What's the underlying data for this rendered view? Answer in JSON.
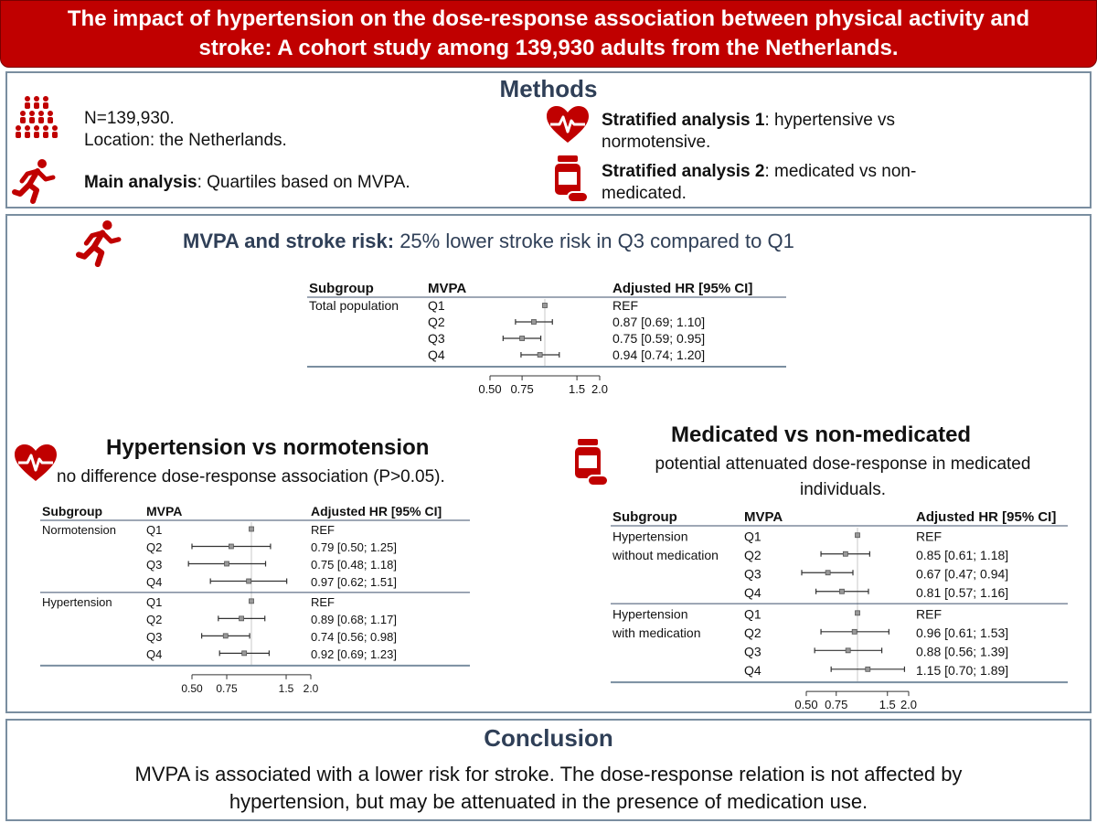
{
  "header": {
    "line1": "The impact of hypertension on the dose-response association between physical activity and",
    "line2": "stroke: A cohort study among 139,930 adults from the Netherlands."
  },
  "methods": {
    "heading": "Methods",
    "n": "N=139,930.",
    "location": "Location: the Netherlands.",
    "main_bold": "Main analysis",
    "main_rest": ": Quartiles based on MVPA.",
    "strat1_bold": "Stratified analysis 1",
    "strat1_rest_1": ": hypertensive vs",
    "strat1_rest_2": "normotensive.",
    "strat2_bold": "Stratified analysis 2",
    "strat2_rest_1": ": medicated vs non-",
    "strat2_rest_2": "medicated."
  },
  "main_result": {
    "bold": "MVPA and stroke risk:",
    "rest": " 25% lower stroke risk in Q3 compared to Q1"
  },
  "hypertension_section": {
    "heading": "Hypertension vs normotension",
    "sub": "no difference dose-response association (P>0.05)."
  },
  "medication_section": {
    "heading": "Medicated vs non-medicated",
    "sub1": "potential attenuated dose-response in medicated",
    "sub2": "individuals."
  },
  "conclusion": {
    "heading": "Conclusion",
    "line1": "MVPA is associated with a lower risk for stroke. The dose-response relation is not affected by",
    "line2": "hypertension, but may be attenuated in the presence of medication use."
  },
  "colors": {
    "accent": "#c00000",
    "heading": "#2f3f57",
    "rule": "#7a8ea0"
  },
  "chart_data": [
    {
      "type": "forest",
      "id": "main",
      "columns": [
        "Subgroup",
        "MVPA",
        "Adjusted HR [95% CI]"
      ],
      "scale": "log",
      "xlim": [
        0.5,
        2.0
      ],
      "ticks": [
        {
          "v": 0.5,
          "label": "0.50"
        },
        {
          "v": 0.75,
          "label": "0.75"
        },
        {
          "v": 1.5,
          "label": "1.5"
        },
        {
          "v": 2.0,
          "label": "2.0"
        }
      ],
      "groups": [
        {
          "label": [
            "Total population"
          ],
          "rows": [
            {
              "q": "Q1",
              "hr": 1.0,
              "lo": null,
              "hi": null,
              "text": "REF"
            },
            {
              "q": "Q2",
              "hr": 0.87,
              "lo": 0.69,
              "hi": 1.1,
              "text": "0.87 [0.69; 1.10]"
            },
            {
              "q": "Q3",
              "hr": 0.75,
              "lo": 0.59,
              "hi": 0.95,
              "text": "0.75 [0.59; 0.95]"
            },
            {
              "q": "Q4",
              "hr": 0.94,
              "lo": 0.74,
              "hi": 1.2,
              "text": "0.94 [0.74; 1.20]"
            }
          ]
        }
      ]
    },
    {
      "type": "forest",
      "id": "hyp",
      "columns": [
        "Subgroup",
        "MVPA",
        "Adjusted HR [95% CI]"
      ],
      "scale": "log",
      "xlim": [
        0.5,
        2.0
      ],
      "ticks": [
        {
          "v": 0.5,
          "label": "0.50"
        },
        {
          "v": 0.75,
          "label": "0.75"
        },
        {
          "v": 1.5,
          "label": "1.5"
        },
        {
          "v": 2.0,
          "label": "2.0"
        }
      ],
      "groups": [
        {
          "label": [
            "Normotension"
          ],
          "rows": [
            {
              "q": "Q1",
              "hr": 1.0,
              "lo": null,
              "hi": null,
              "text": "REF"
            },
            {
              "q": "Q2",
              "hr": 0.79,
              "lo": 0.5,
              "hi": 1.25,
              "text": "0.79 [0.50; 1.25]"
            },
            {
              "q": "Q3",
              "hr": 0.75,
              "lo": 0.48,
              "hi": 1.18,
              "text": "0.75 [0.48; 1.18]"
            },
            {
              "q": "Q4",
              "hr": 0.97,
              "lo": 0.62,
              "hi": 1.51,
              "text": "0.97 [0.62; 1.51]"
            }
          ]
        },
        {
          "label": [
            "Hypertension"
          ],
          "rows": [
            {
              "q": "Q1",
              "hr": 1.0,
              "lo": null,
              "hi": null,
              "text": "REF"
            },
            {
              "q": "Q2",
              "hr": 0.89,
              "lo": 0.68,
              "hi": 1.17,
              "text": "0.89 [0.68; 1.17]"
            },
            {
              "q": "Q3",
              "hr": 0.74,
              "lo": 0.56,
              "hi": 0.98,
              "text": "0.74 [0.56; 0.98]"
            },
            {
              "q": "Q4",
              "hr": 0.92,
              "lo": 0.69,
              "hi": 1.23,
              "text": "0.92 [0.69; 1.23]"
            }
          ]
        }
      ]
    },
    {
      "type": "forest",
      "id": "med",
      "columns": [
        "Subgroup",
        "MVPA",
        "Adjusted HR [95% CI]"
      ],
      "scale": "log",
      "xlim": [
        0.5,
        2.0
      ],
      "ticks": [
        {
          "v": 0.5,
          "label": "0.50"
        },
        {
          "v": 0.75,
          "label": "0.75"
        },
        {
          "v": 1.5,
          "label": "1.5"
        },
        {
          "v": 2.0,
          "label": "2.0"
        }
      ],
      "groups": [
        {
          "label": [
            "Hypertension",
            "without medication"
          ],
          "rows": [
            {
              "q": "Q1",
              "hr": 1.0,
              "lo": null,
              "hi": null,
              "text": "REF"
            },
            {
              "q": "Q2",
              "hr": 0.85,
              "lo": 0.61,
              "hi": 1.18,
              "text": "0.85 [0.61; 1.18]"
            },
            {
              "q": "Q3",
              "hr": 0.67,
              "lo": 0.47,
              "hi": 0.94,
              "text": "0.67 [0.47; 0.94]"
            },
            {
              "q": "Q4",
              "hr": 0.81,
              "lo": 0.57,
              "hi": 1.16,
              "text": "0.81 [0.57; 1.16]"
            }
          ]
        },
        {
          "label": [
            "Hypertension",
            "with medication"
          ],
          "rows": [
            {
              "q": "Q1",
              "hr": 1.0,
              "lo": null,
              "hi": null,
              "text": "REF"
            },
            {
              "q": "Q2",
              "hr": 0.96,
              "lo": 0.61,
              "hi": 1.53,
              "text": "0.96 [0.61; 1.53]"
            },
            {
              "q": "Q3",
              "hr": 0.88,
              "lo": 0.56,
              "hi": 1.39,
              "text": "0.88 [0.56; 1.39]"
            },
            {
              "q": "Q4",
              "hr": 1.15,
              "lo": 0.7,
              "hi": 1.89,
              "text": "1.15 [0.70; 1.89]"
            }
          ]
        }
      ]
    }
  ]
}
